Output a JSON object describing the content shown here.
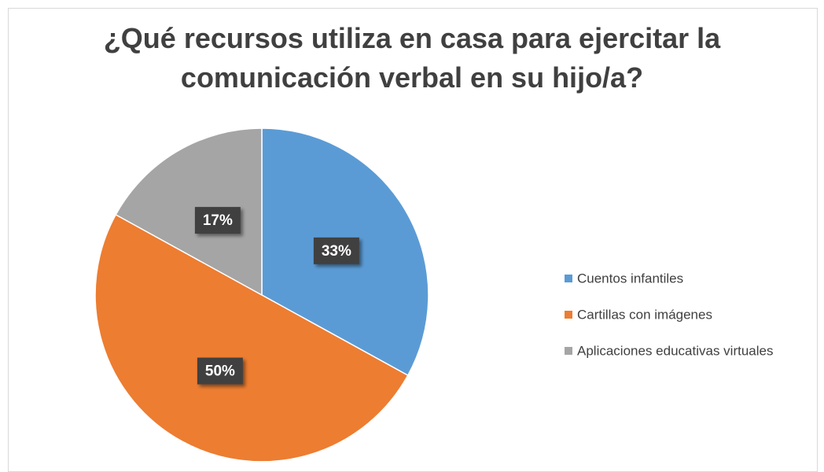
{
  "chart_data": {
    "type": "pie",
    "title": "¿Qué recursos utiliza en casa para ejercitar la comunicación verbal en su hijo/a?",
    "categories": [
      "Cuentos infantiles",
      "Cartillas con imágenes",
      "Aplicaciones educativas virtuales"
    ],
    "values": [
      33,
      50,
      17
    ],
    "value_labels": [
      "33%",
      "50%",
      "17%"
    ],
    "colors": [
      "#5b9bd5",
      "#ed7d31",
      "#a5a5a5"
    ],
    "legend": "right"
  }
}
